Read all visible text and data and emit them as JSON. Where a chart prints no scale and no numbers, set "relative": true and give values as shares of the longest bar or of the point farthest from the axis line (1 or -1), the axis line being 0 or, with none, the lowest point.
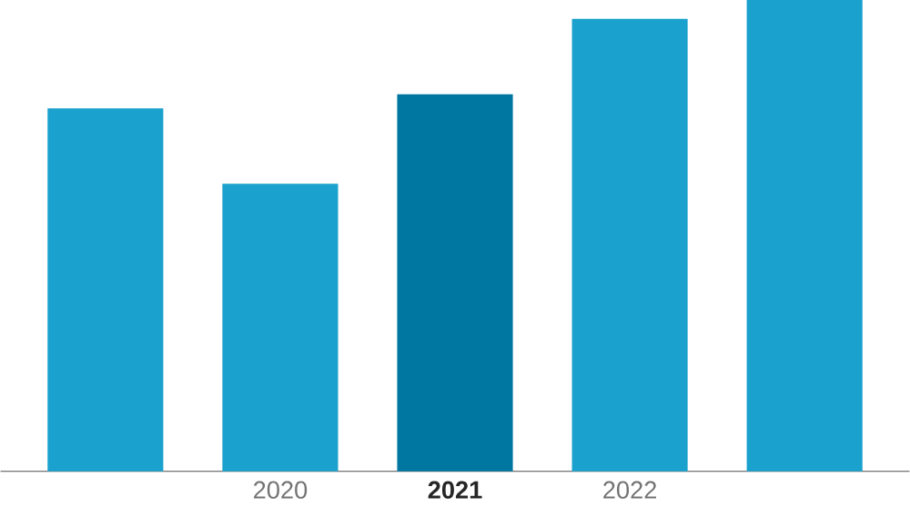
{
  "chart_data": {
    "type": "bar",
    "relative": true,
    "categories": [
      null,
      "2020",
      "2021",
      "2022",
      null
    ],
    "values": [
      0.77,
      0.61,
      0.8,
      0.96,
      1
    ],
    "colors": [
      "#1aa1cd",
      "#1aa1cd",
      "#0077a0",
      "#1aa1cd",
      "#1aa1cd"
    ]
  }
}
